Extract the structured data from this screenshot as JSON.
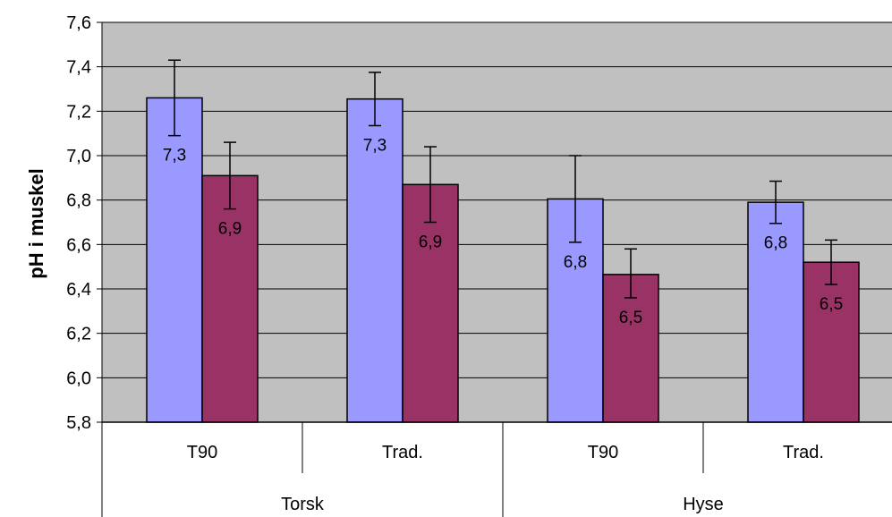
{
  "chart_data": {
    "type": "bar",
    "ylabel": "pH i muskel",
    "ylim": [
      5.8,
      7.6
    ],
    "ytick_step": 0.2,
    "ytick_labels": [
      "5,8",
      "6,0",
      "6,2",
      "6,4",
      "6,6",
      "6,8",
      "7,0",
      "7,2",
      "7,4",
      "7,6"
    ],
    "grid": true,
    "groups": [
      {
        "name": "Torsk",
        "categories": [
          "T90",
          "Trad."
        ]
      },
      {
        "name": "Hyse",
        "categories": [
          "T90",
          "Trad."
        ]
      }
    ],
    "categories": [
      "T90",
      "Trad.",
      "T90",
      "Trad."
    ],
    "series": [
      {
        "color": "#9999ff",
        "values": [
          7.26,
          7.255,
          6.805,
          6.79
        ],
        "error_low": [
          7.09,
          7.135,
          6.61,
          6.695
        ],
        "error_high": [
          7.43,
          7.375,
          7.0,
          6.885
        ],
        "labels": [
          "7,3",
          "7,3",
          "6,8",
          "6,8"
        ]
      },
      {
        "color": "#993366",
        "values": [
          6.91,
          6.87,
          6.465,
          6.52
        ],
        "error_low": [
          6.76,
          6.7,
          6.36,
          6.42
        ],
        "error_high": [
          7.06,
          7.04,
          6.58,
          6.62
        ],
        "labels": [
          "6,9",
          "6,9",
          "6,5",
          "6,5"
        ]
      }
    ],
    "plot_background": "#c0c0c0"
  }
}
